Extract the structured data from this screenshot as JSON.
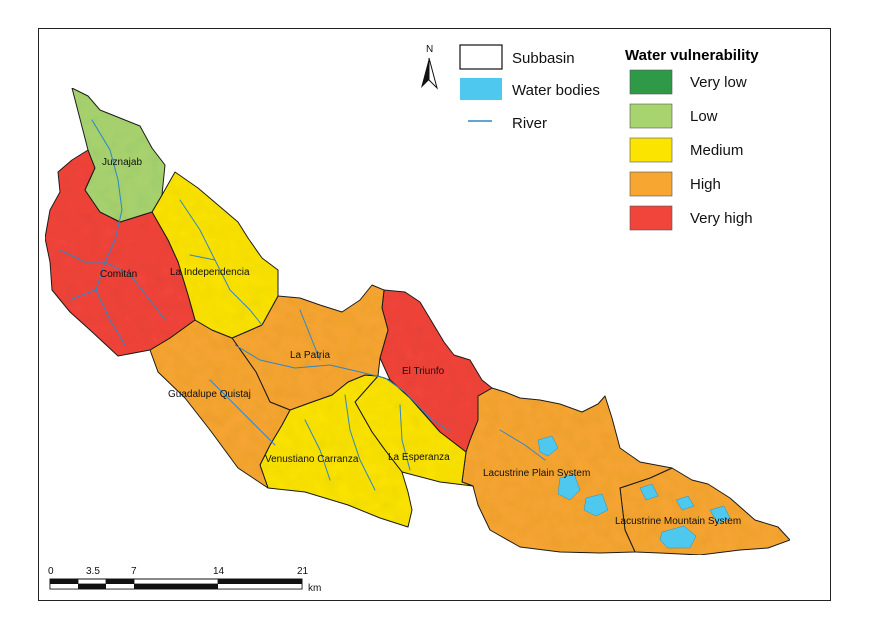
{
  "legend": {
    "subbasin_label": "Subbasin",
    "water_bodies_label": "Water bodies",
    "river_label": "River",
    "vulnerability_title": "Water vulnerability",
    "classes": [
      {
        "label": "Very low",
        "color": "#2e9a47"
      },
      {
        "label": "Low",
        "color": "#a8d46f"
      },
      {
        "label": "Medium",
        "color": "#fbe400"
      },
      {
        "label": "High",
        "color": "#f7a631"
      },
      {
        "label": "Very high",
        "color": "#f1443a"
      }
    ]
  },
  "north_arrow": {
    "label": "N"
  },
  "scale_bar": {
    "ticks": [
      "0",
      "3.5",
      "7",
      "14",
      "21"
    ],
    "unit": "km"
  },
  "subbasins": [
    {
      "name": "Juznajab",
      "vulnerability": "Low"
    },
    {
      "name": "Comitán",
      "vulnerability": "Very high"
    },
    {
      "name": "La Independencia",
      "vulnerability": "Medium"
    },
    {
      "name": "La Patria",
      "vulnerability": "High"
    },
    {
      "name": "Guadalupe Quistaj",
      "vulnerability": "High"
    },
    {
      "name": "El Triunfo",
      "vulnerability": "Very high"
    },
    {
      "name": "Venustiano Carranza",
      "vulnerability": "Medium"
    },
    {
      "name": "La Esperanza",
      "vulnerability": "Medium"
    },
    {
      "name": "Lacustrine Plain System",
      "vulnerability": "High"
    },
    {
      "name": "Lacustrine Mountain System",
      "vulnerability": "High"
    }
  ],
  "colors": {
    "water": "#4fc8f0",
    "river": "#2f86c8",
    "boundary": "#1a1a1a"
  }
}
